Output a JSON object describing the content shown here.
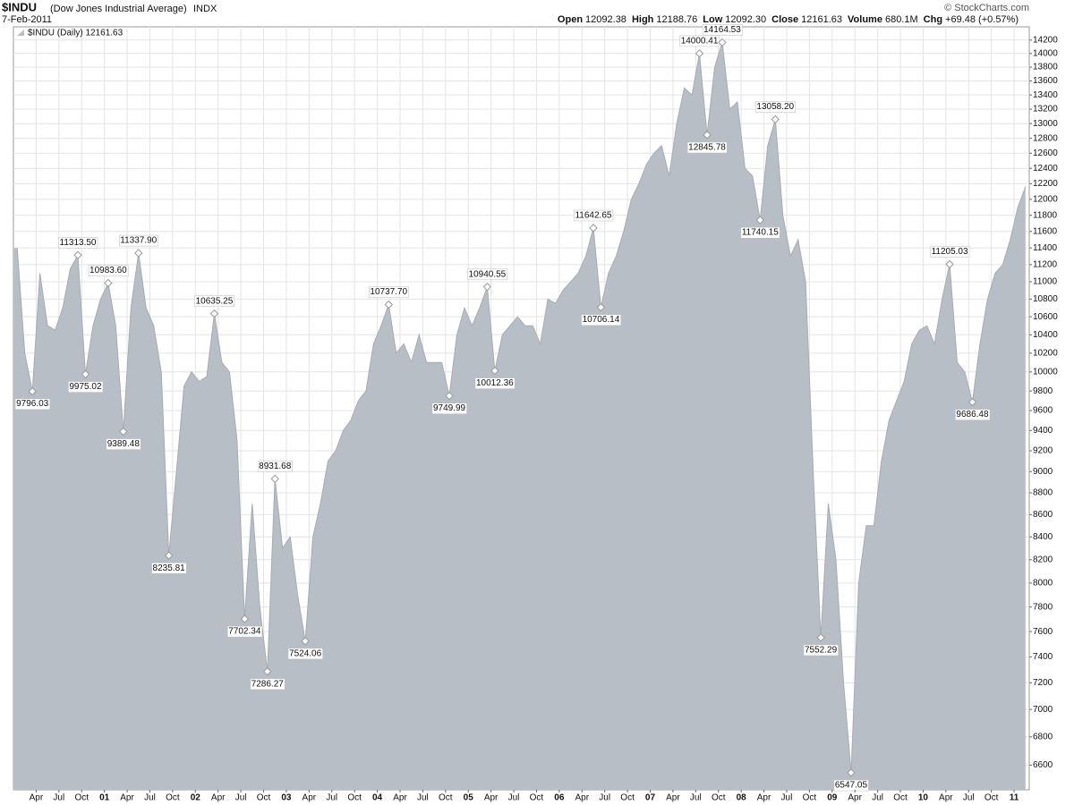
{
  "chart_data": {
    "type": "area",
    "title": "$INDU",
    "subtitle": "(Dow Jones Industrial Average)",
    "exchange": "INDX",
    "date": "7-Feb-2011",
    "source": "© StockCharts.com",
    "stats": [
      {
        "label": "Open",
        "value": "12092.38"
      },
      {
        "label": "High",
        "value": "12188.76"
      },
      {
        "label": "Low",
        "value": "12092.30"
      },
      {
        "label": "Close",
        "value": "12161.63"
      },
      {
        "label": "Volume",
        "value": "680.1M"
      },
      {
        "label": "Chg",
        "value": "+69.48 (+0.57%)"
      }
    ],
    "log_scale": true,
    "grid": true,
    "ylim": [
      6430,
      14400
    ],
    "yticks": [
      6600,
      6800,
      7000,
      7200,
      7400,
      7600,
      7800,
      8000,
      8200,
      8400,
      8600,
      8800,
      9000,
      9200,
      9400,
      9600,
      9800,
      10000,
      10200,
      10400,
      10600,
      10800,
      11000,
      11200,
      11400,
      11600,
      11800,
      12000,
      12200,
      12400,
      12600,
      12800,
      13000,
      13200,
      13400,
      13600,
      13800,
      14000,
      14200
    ],
    "x": [
      "2000-01",
      "2000-02",
      "2000-03",
      "2000-04",
      "2000-05",
      "2000-06",
      "2000-07",
      "2000-08",
      "2000-09",
      "2000-10",
      "2000-11",
      "2000-12",
      "2001-01",
      "2001-02",
      "2001-03",
      "2001-04",
      "2001-05",
      "2001-06",
      "2001-07",
      "2001-08",
      "2001-09",
      "2001-10",
      "2001-11",
      "2001-12",
      "2002-01",
      "2002-02",
      "2002-03",
      "2002-04",
      "2002-05",
      "2002-06",
      "2002-07",
      "2002-08",
      "2002-09",
      "2002-10",
      "2002-11",
      "2002-12",
      "2003-01",
      "2003-02",
      "2003-03",
      "2003-04",
      "2003-05",
      "2003-06",
      "2003-07",
      "2003-08",
      "2003-09",
      "2003-10",
      "2003-11",
      "2003-12",
      "2004-01",
      "2004-02",
      "2004-03",
      "2004-04",
      "2004-05",
      "2004-06",
      "2004-07",
      "2004-08",
      "2004-09",
      "2004-10",
      "2004-11",
      "2004-12",
      "2005-01",
      "2005-02",
      "2005-03",
      "2005-04",
      "2005-05",
      "2005-06",
      "2005-07",
      "2005-08",
      "2005-09",
      "2005-10",
      "2005-11",
      "2005-12",
      "2006-01",
      "2006-02",
      "2006-03",
      "2006-04",
      "2006-05",
      "2006-06",
      "2006-07",
      "2006-08",
      "2006-09",
      "2006-10",
      "2006-11",
      "2006-12",
      "2007-01",
      "2007-02",
      "2007-03",
      "2007-04",
      "2007-05",
      "2007-06",
      "2007-07",
      "2007-08",
      "2007-09",
      "2007-10",
      "2007-11",
      "2007-12",
      "2008-01",
      "2008-02",
      "2008-03",
      "2008-04",
      "2008-05",
      "2008-06",
      "2008-07",
      "2008-08",
      "2008-09",
      "2008-10",
      "2008-11",
      "2008-12",
      "2009-01",
      "2009-02",
      "2009-03",
      "2009-04",
      "2009-05",
      "2009-06",
      "2009-07",
      "2009-08",
      "2009-09",
      "2009-10",
      "2009-11",
      "2009-12",
      "2010-01",
      "2010-02",
      "2010-03",
      "2010-04",
      "2010-05",
      "2010-06",
      "2010-07",
      "2010-08",
      "2010-09",
      "2010-10",
      "2010-11",
      "2010-12",
      "2011-01",
      "2011-02"
    ],
    "series": [
      {
        "name": "$INDU (Daily) 12161.63",
        "color": "#b8bec6",
        "values": [
          11400,
          10200,
          9796.03,
          11100,
          10500,
          10450,
          10700,
          11150,
          11313.5,
          9975.02,
          10500,
          10800,
          10983.6,
          10500,
          9389.48,
          10700,
          11337.9,
          10700,
          10500,
          10000,
          8235.81,
          9000,
          9850,
          10000,
          9900,
          9950,
          10635.25,
          10100,
          10000,
          9300,
          7702.34,
          8700,
          7800,
          7286.27,
          8931.68,
          8300,
          8400,
          7900,
          7524.06,
          8400,
          8700,
          9100,
          9200,
          9400,
          9500,
          9700,
          9800,
          10300,
          10500,
          10737.7,
          10200,
          10300,
          10100,
          10400,
          10100,
          10100,
          10100,
          9749.99,
          10400,
          10700,
          10500,
          10700,
          10940.55,
          10012.36,
          10400,
          10500,
          10600,
          10500,
          10500,
          10300,
          10800,
          10750,
          10900,
          11000,
          11100,
          11300,
          11642.65,
          10706.14,
          11100,
          11300,
          11600,
          12000,
          12200,
          12450,
          12600,
          12700,
          12300,
          13000,
          13500,
          13400,
          14000.41,
          12845.78,
          13800,
          14164.53,
          13200,
          13300,
          12400,
          12300,
          11740.15,
          12700,
          13058.2,
          11800,
          11300,
          11500,
          11000,
          9000,
          7552.29,
          8700,
          8200,
          7200,
          6547.05,
          8000,
          8500,
          8500,
          9100,
          9500,
          9700,
          9900,
          10300,
          10450,
          10500,
          10300,
          10800,
          11205.03,
          10100,
          10000,
          9686.48,
          10300,
          10800,
          11100,
          11200,
          11500,
          11900,
          12161.63
        ]
      }
    ],
    "annotations": [
      {
        "x": "2000-03",
        "value": 9796.03
      },
      {
        "x": "2000-09",
        "value": 11313.5,
        "label": "11313.50"
      },
      {
        "x": "2000-10",
        "value": 9975.02
      },
      {
        "x": "2001-01",
        "value": 10983.6,
        "label": "10983.60"
      },
      {
        "x": "2001-03",
        "value": 9389.48
      },
      {
        "x": "2001-05",
        "value": 11337.9,
        "label": "11337.90"
      },
      {
        "x": "2001-09",
        "value": 8235.81
      },
      {
        "x": "2002-03",
        "value": 10635.25
      },
      {
        "x": "2002-07",
        "value": 7702.34
      },
      {
        "x": "2002-10",
        "value": 7286.27
      },
      {
        "x": "2002-11",
        "value": 8931.68
      },
      {
        "x": "2003-03",
        "value": 7524.06
      },
      {
        "x": "2004-02",
        "value": 10737.7,
        "label": "10737.70"
      },
      {
        "x": "2004-10",
        "value": 9749.99
      },
      {
        "x": "2005-03",
        "value": 10940.55
      },
      {
        "x": "2005-04",
        "value": 10012.36
      },
      {
        "x": "2006-05",
        "value": 11642.65
      },
      {
        "x": "2006-06",
        "value": 10706.14
      },
      {
        "x": "2007-07",
        "value": 14000.41
      },
      {
        "x": "2007-08",
        "value": 12845.78
      },
      {
        "x": "2007-10",
        "value": 14164.53
      },
      {
        "x": "2008-03",
        "value": 11740.15
      },
      {
        "x": "2008-05",
        "value": 13058.2,
        "label": "13058.20"
      },
      {
        "x": "2008-11",
        "value": 7552.29
      },
      {
        "x": "2009-03",
        "value": 6547.05
      },
      {
        "x": "2010-04",
        "value": 11205.03
      },
      {
        "x": "2010-07",
        "value": 9686.48
      }
    ],
    "xticks": [
      {
        "value": "2000-04",
        "label": "Apr"
      },
      {
        "value": "2000-07",
        "label": "Jul"
      },
      {
        "value": "2000-10",
        "label": "Oct"
      },
      {
        "value": "2001-01",
        "label": "01"
      },
      {
        "value": "2001-04",
        "label": "Apr"
      },
      {
        "value": "2001-07",
        "label": "Jul"
      },
      {
        "value": "2001-10",
        "label": "Oct"
      },
      {
        "value": "2002-01",
        "label": "02"
      },
      {
        "value": "2002-04",
        "label": "Apr"
      },
      {
        "value": "2002-07",
        "label": "Jul"
      },
      {
        "value": "2002-10",
        "label": "Oct"
      },
      {
        "value": "2003-01",
        "label": "03"
      },
      {
        "value": "2003-04",
        "label": "Apr"
      },
      {
        "value": "2003-07",
        "label": "Jul"
      },
      {
        "value": "2003-10",
        "label": "Oct"
      },
      {
        "value": "2004-01",
        "label": "04"
      },
      {
        "value": "2004-04",
        "label": "Apr"
      },
      {
        "value": "2004-07",
        "label": "Jul"
      },
      {
        "value": "2004-10",
        "label": "Oct"
      },
      {
        "value": "2005-01",
        "label": "05"
      },
      {
        "value": "2005-04",
        "label": "Apr"
      },
      {
        "value": "2005-07",
        "label": "Jul"
      },
      {
        "value": "2005-10",
        "label": "Oct"
      },
      {
        "value": "2006-01",
        "label": "06"
      },
      {
        "value": "2006-04",
        "label": "Apr"
      },
      {
        "value": "2006-07",
        "label": "Jul"
      },
      {
        "value": "2006-10",
        "label": "Oct"
      },
      {
        "value": "2007-01",
        "label": "07"
      },
      {
        "value": "2007-04",
        "label": "Apr"
      },
      {
        "value": "2007-07",
        "label": "Jul"
      },
      {
        "value": "2007-10",
        "label": "Oct"
      },
      {
        "value": "2008-01",
        "label": "08"
      },
      {
        "value": "2008-04",
        "label": "Apr"
      },
      {
        "value": "2008-07",
        "label": "Jul"
      },
      {
        "value": "2008-10",
        "label": "Oct"
      },
      {
        "value": "2009-01",
        "label": "09"
      },
      {
        "value": "2009-04",
        "label": "Apr"
      },
      {
        "value": "2009-07",
        "label": "Jul"
      },
      {
        "value": "2009-10",
        "label": "Oct"
      },
      {
        "value": "2010-01",
        "label": "10"
      },
      {
        "value": "2010-04",
        "label": "Apr"
      },
      {
        "value": "2010-07",
        "label": "Jul"
      },
      {
        "value": "2010-10",
        "label": "Oct"
      },
      {
        "value": "2011-01",
        "label": "11"
      }
    ]
  }
}
